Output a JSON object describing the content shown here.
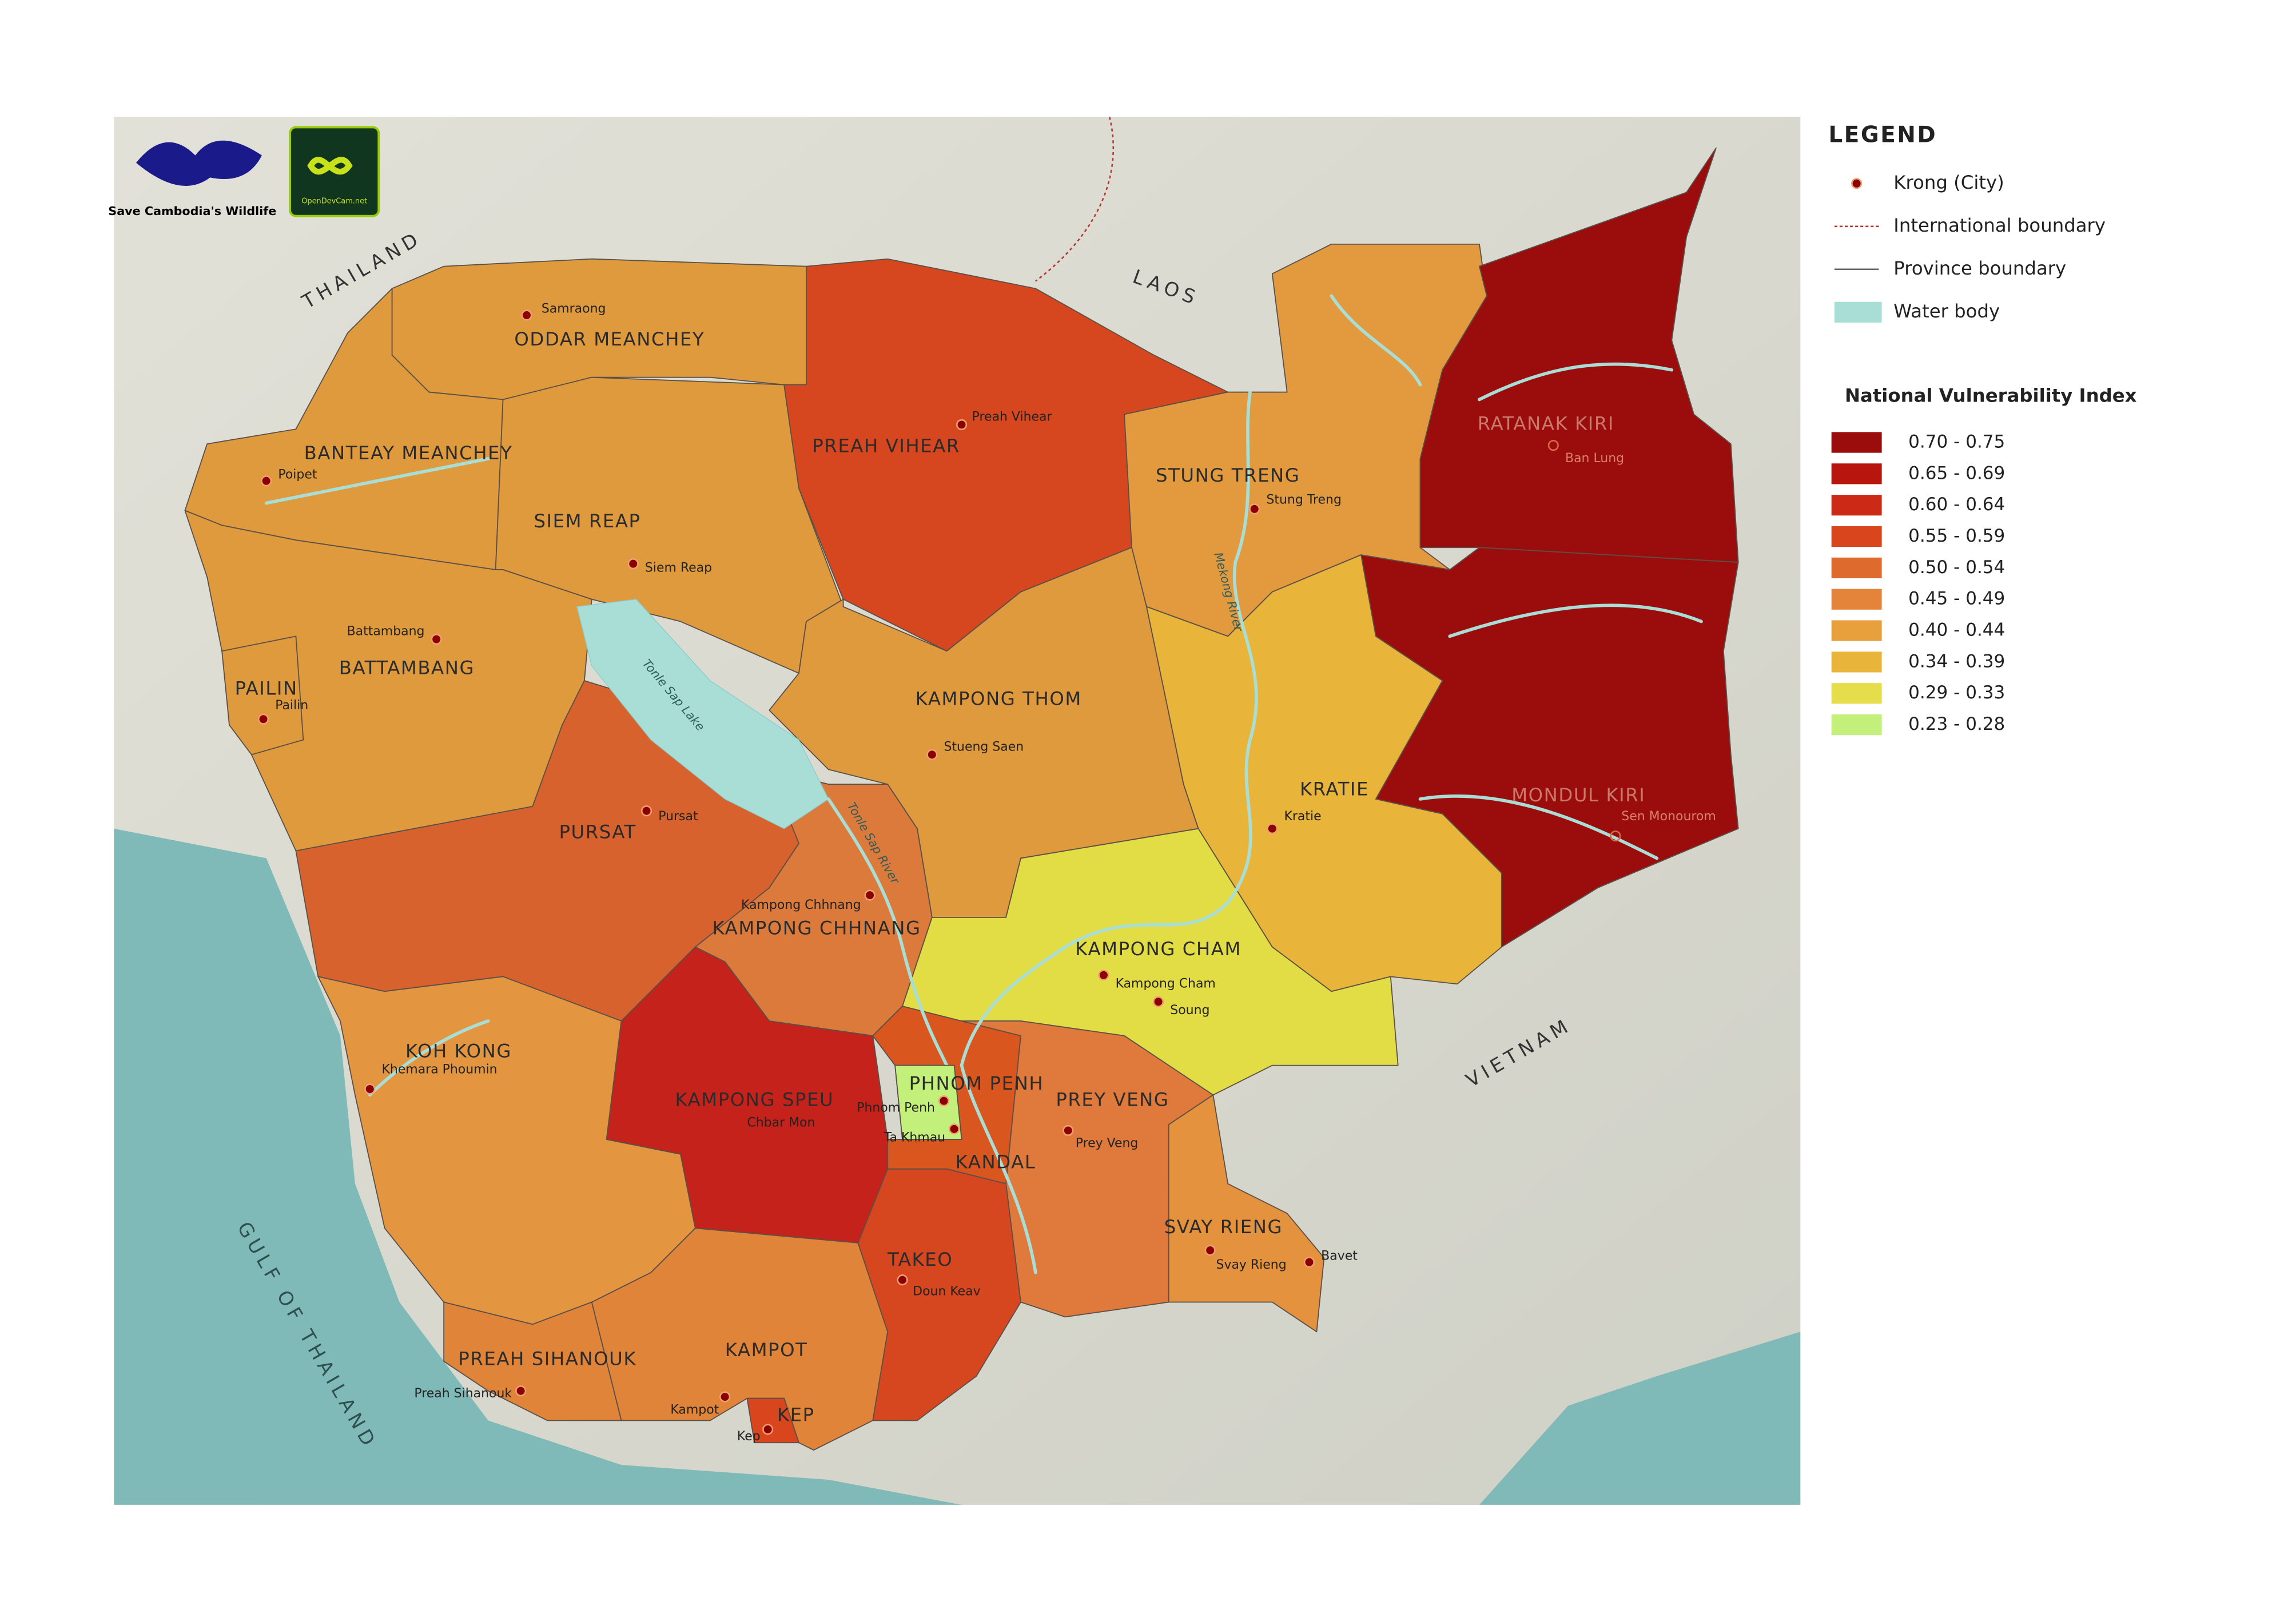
{
  "logos": {
    "wildlife": "Save Cambodia's Wildlife",
    "odc": "OpenDevCam.net"
  },
  "countries": [
    "THAILAND",
    "LAOS",
    "VIETNAM"
  ],
  "water_labels": [
    "GULF OF THAILAND",
    "Tonle Sap Lake",
    "Tonle Sap River",
    "Mekong River"
  ],
  "provinces": [
    {
      "name": "ODDAR MEANCHEY",
      "color": "#e09a3e"
    },
    {
      "name": "BANTEAY MEANCHEY",
      "color": "#e09a3e"
    },
    {
      "name": "SIEM REAP",
      "color": "#e09a3e"
    },
    {
      "name": "PREAH VIHEAR",
      "color": "#d6461f"
    },
    {
      "name": "STUNG TRENG",
      "color": "#e39a3e"
    },
    {
      "name": "RATANAK KIRI",
      "color": "#9b0d0d"
    },
    {
      "name": "MONDUL KIRI",
      "color": "#9b0d0d"
    },
    {
      "name": "KRATIE",
      "color": "#e9b43a"
    },
    {
      "name": "KAMPONG THOM",
      "color": "#e09a3e"
    },
    {
      "name": "BATTAMBANG",
      "color": "#e09a3e"
    },
    {
      "name": "PAILIN",
      "color": "#e09a3e"
    },
    {
      "name": "PURSAT",
      "color": "#d7622e"
    },
    {
      "name": "KAMPONG CHHNANG",
      "color": "#dc7a3c"
    },
    {
      "name": "KOH KONG",
      "color": "#e39540"
    },
    {
      "name": "KAMPONG SPEU",
      "color": "#c4221a"
    },
    {
      "name": "PREAH SIHANOUK",
      "color": "#e0843a"
    },
    {
      "name": "KAMPOT",
      "color": "#e0843a"
    },
    {
      "name": "KEP",
      "color": "#d9461e"
    },
    {
      "name": "TAKEO",
      "color": "#d6461f"
    },
    {
      "name": "PHNOM PENH",
      "color": "#c3f07a"
    },
    {
      "name": "KANDAL",
      "color": "#d9561f"
    },
    {
      "name": "KAMPONG CHAM",
      "color": "#e3dd45"
    },
    {
      "name": "PREY VENG",
      "color": "#df7a3c"
    },
    {
      "name": "SVAY RIENG",
      "color": "#e4923e"
    }
  ],
  "cities": [
    "Samraong",
    "Poipet",
    "Siem Reap",
    "Battambang",
    "Pailin",
    "Preah Vihear",
    "Stung Treng",
    "Ban Lung",
    "Stueng Saen",
    "Pursat",
    "Kampong Chhnang",
    "Kratie",
    "Sen Monourom",
    "Kampong Cham",
    "Soung",
    "Khemara Phoumin",
    "Phnom Penh",
    "Chbar Mon",
    "Ta Khmau",
    "Prey Veng",
    "Bavet",
    "Svay Rieng",
    "Doun Keav",
    "Preah Sihanouk",
    "Kampot",
    "Kep"
  ],
  "legend": {
    "title": "LEGEND",
    "items": [
      "Krong (City)",
      "International boundary",
      "Province boundary",
      "Water body"
    ],
    "index_title": "National Vulnerability Index",
    "classes": [
      {
        "label": "0.70 - 0.75",
        "color": "#9b0d0d"
      },
      {
        "label": "0.65 - 0.69",
        "color": "#b8150f"
      },
      {
        "label": "0.60 - 0.64",
        "color": "#cc2a16"
      },
      {
        "label": "0.55 - 0.59",
        "color": "#d9461e"
      },
      {
        "label": "0.50 - 0.54",
        "color": "#df6a2e"
      },
      {
        "label": "0.45 - 0.49",
        "color": "#e4843a"
      },
      {
        "label": "0.40 - 0.44",
        "color": "#e8a03c"
      },
      {
        "label": "0.34 - 0.39",
        "color": "#e9b43a"
      },
      {
        "label": "0.29 - 0.33",
        "color": "#e6dd4a"
      },
      {
        "label": "0.23 - 0.28",
        "color": "#c3f07a"
      }
    ]
  }
}
